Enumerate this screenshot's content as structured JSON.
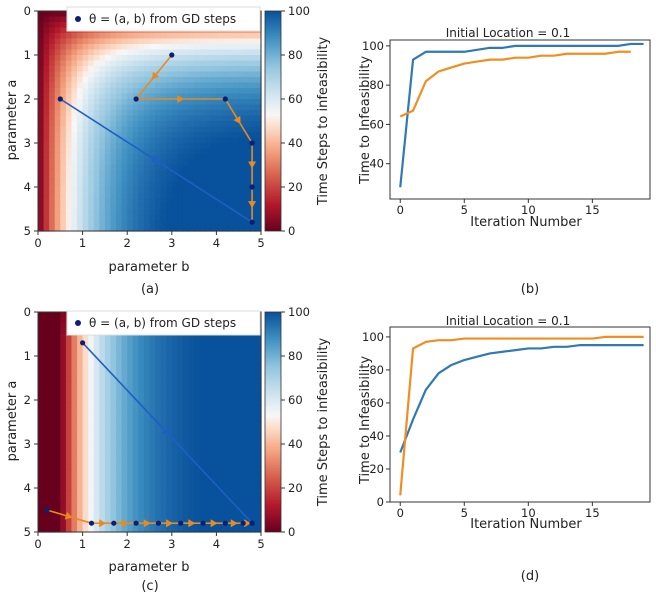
{
  "figure": {
    "panel_labels": [
      "(a)",
      "(b)",
      "(c)",
      "(d)"
    ]
  },
  "colors": {
    "series_blue": "#2f79b5",
    "series_orange": "#f08e21",
    "path_blue": "#1f5fc4",
    "path_orange": "#e88a1f",
    "marker": "#0c1f73"
  },
  "chart_data": [
    {
      "type": "heatmap",
      "panel": "(a)",
      "xlabel": "parameter b",
      "ylabel": "parameter a",
      "xlim": [
        0,
        5
      ],
      "ylim": [
        5,
        0
      ],
      "xticks": [
        "0",
        "1",
        "2",
        "3",
        "4",
        "5"
      ],
      "yticks": [
        "0",
        "1",
        "2",
        "3",
        "4",
        "5"
      ],
      "legend": {
        "label": "θ = (a, b) from GD steps",
        "location": "top"
      },
      "colorbar": {
        "label": "Time Steps to infeasibility",
        "range": [
          0,
          100
        ],
        "ticks": [
          "0",
          "20",
          "40",
          "60",
          "80",
          "100"
        ],
        "colormap": "RdBu"
      },
      "paths": [
        {
          "color": "blue",
          "points": [
            [
              0.5,
              2.0
            ],
            [
              4.8,
              4.8
            ]
          ]
        },
        {
          "color": "orange",
          "points": [
            [
              3.0,
              1.0
            ],
            [
              2.2,
              2.0
            ],
            [
              4.2,
              2.0
            ],
            [
              4.8,
              3.0
            ],
            [
              4.8,
              4.0
            ],
            [
              4.8,
              4.8
            ]
          ]
        }
      ]
    },
    {
      "type": "line",
      "panel": "(b)",
      "title": "Initial Location = 0.1",
      "xlabel": "Iteration Number",
      "ylabel": "Time to Infeasibility",
      "xlim": [
        -0.8,
        19.5
      ],
      "ylim": [
        22,
        103
      ],
      "xticks": [
        "0",
        "5",
        "10",
        "15"
      ],
      "yticks": [
        "40",
        "60",
        "80",
        "100"
      ],
      "series": [
        {
          "color": "blue",
          "x": [
            0,
            1,
            2,
            3,
            4,
            5,
            6,
            7,
            8,
            9,
            10,
            11,
            12,
            13,
            14,
            15,
            16,
            17,
            18,
            19
          ],
          "values": [
            28,
            93,
            97,
            97,
            97,
            97,
            98,
            99,
            99,
            100,
            100,
            100,
            100,
            100,
            100,
            100,
            100,
            100,
            101,
            101
          ]
        },
        {
          "color": "orange",
          "x": [
            0,
            1,
            2,
            3,
            4,
            5,
            6,
            7,
            8,
            9,
            10,
            11,
            12,
            13,
            14,
            15,
            16,
            17,
            18
          ],
          "values": [
            64,
            67,
            82,
            87,
            89,
            91,
            92,
            93,
            93,
            94,
            94,
            95,
            95,
            96,
            96,
            96,
            96,
            97,
            97
          ]
        }
      ]
    },
    {
      "type": "heatmap",
      "panel": "(c)",
      "xlabel": "parameter b",
      "ylabel": "parameter a",
      "xlim": [
        0,
        5
      ],
      "ylim": [
        5,
        0
      ],
      "xticks": [
        "0",
        "1",
        "2",
        "3",
        "4",
        "5"
      ],
      "yticks": [
        "0",
        "1",
        "2",
        "3",
        "4",
        "5"
      ],
      "legend": {
        "label": "θ = (a, b) from GD steps",
        "location": "top"
      },
      "colorbar": {
        "label": "Time Steps to infeasibility",
        "range": [
          0,
          100
        ],
        "ticks": [
          "0",
          "20",
          "40",
          "60",
          "80",
          "100"
        ],
        "colormap": "RdBu"
      },
      "paths": [
        {
          "color": "blue",
          "points": [
            [
              1.0,
              0.7
            ],
            [
              4.8,
              4.8
            ]
          ]
        },
        {
          "color": "orange",
          "points": [
            [
              0.2,
              4.5
            ],
            [
              1.2,
              4.8
            ],
            [
              1.7,
              4.8
            ],
            [
              2.2,
              4.8
            ],
            [
              2.7,
              4.8
            ],
            [
              3.2,
              4.8
            ],
            [
              3.7,
              4.8
            ],
            [
              4.2,
              4.8
            ],
            [
              4.6,
              4.8
            ],
            [
              4.8,
              4.8
            ]
          ]
        }
      ]
    },
    {
      "type": "line",
      "panel": "(d)",
      "title": "Initial Location = 0.1",
      "xlabel": "Iteration Number",
      "ylabel": "Time to Infeasibility",
      "xlim": [
        -0.8,
        19.5
      ],
      "ylim": [
        0,
        106
      ],
      "xticks": [
        "0",
        "5",
        "10",
        "15"
      ],
      "yticks": [
        "0",
        "20",
        "40",
        "60",
        "80",
        "100"
      ],
      "series": [
        {
          "color": "blue",
          "x": [
            0,
            1,
            2,
            3,
            4,
            5,
            6,
            7,
            8,
            9,
            10,
            11,
            12,
            13,
            14,
            15,
            16,
            17,
            18,
            19
          ],
          "values": [
            30,
            50,
            68,
            78,
            83,
            86,
            88,
            90,
            91,
            92,
            93,
            93,
            94,
            94,
            95,
            95,
            95,
            95,
            95,
            95
          ]
        },
        {
          "color": "orange",
          "x": [
            0,
            1,
            2,
            3,
            4,
            5,
            6,
            7,
            8,
            9,
            10,
            11,
            12,
            13,
            14,
            15,
            16,
            17,
            18,
            19
          ],
          "values": [
            4,
            93,
            97,
            98,
            98,
            99,
            99,
            99,
            99,
            99,
            99,
            99,
            99,
            99,
            99,
            99,
            100,
            100,
            100,
            100
          ]
        }
      ]
    }
  ]
}
